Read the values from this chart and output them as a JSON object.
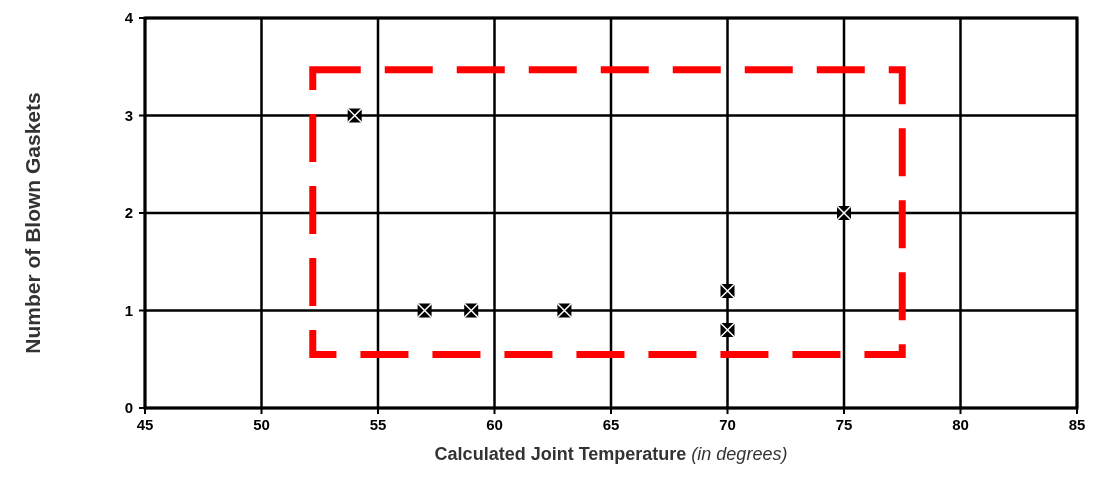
{
  "chart_data": {
    "type": "scatter",
    "xlabel": "Calculated Joint Temperature  (in degrees)",
    "ylabel": "Number of Blown Gaskets",
    "x": [
      54,
      57,
      59,
      63,
      70,
      70,
      75
    ],
    "values": [
      3,
      1,
      1,
      1,
      1.2,
      0.8,
      2
    ],
    "color": "#000000",
    "marker": "square",
    "xlim": [
      45,
      85
    ],
    "xticks": [
      45,
      50,
      55,
      60,
      65,
      70,
      75,
      80,
      85
    ],
    "ylim": [
      0,
      4
    ],
    "yticks": [
      0,
      1,
      2,
      3,
      4
    ],
    "grid": true
  }
}
